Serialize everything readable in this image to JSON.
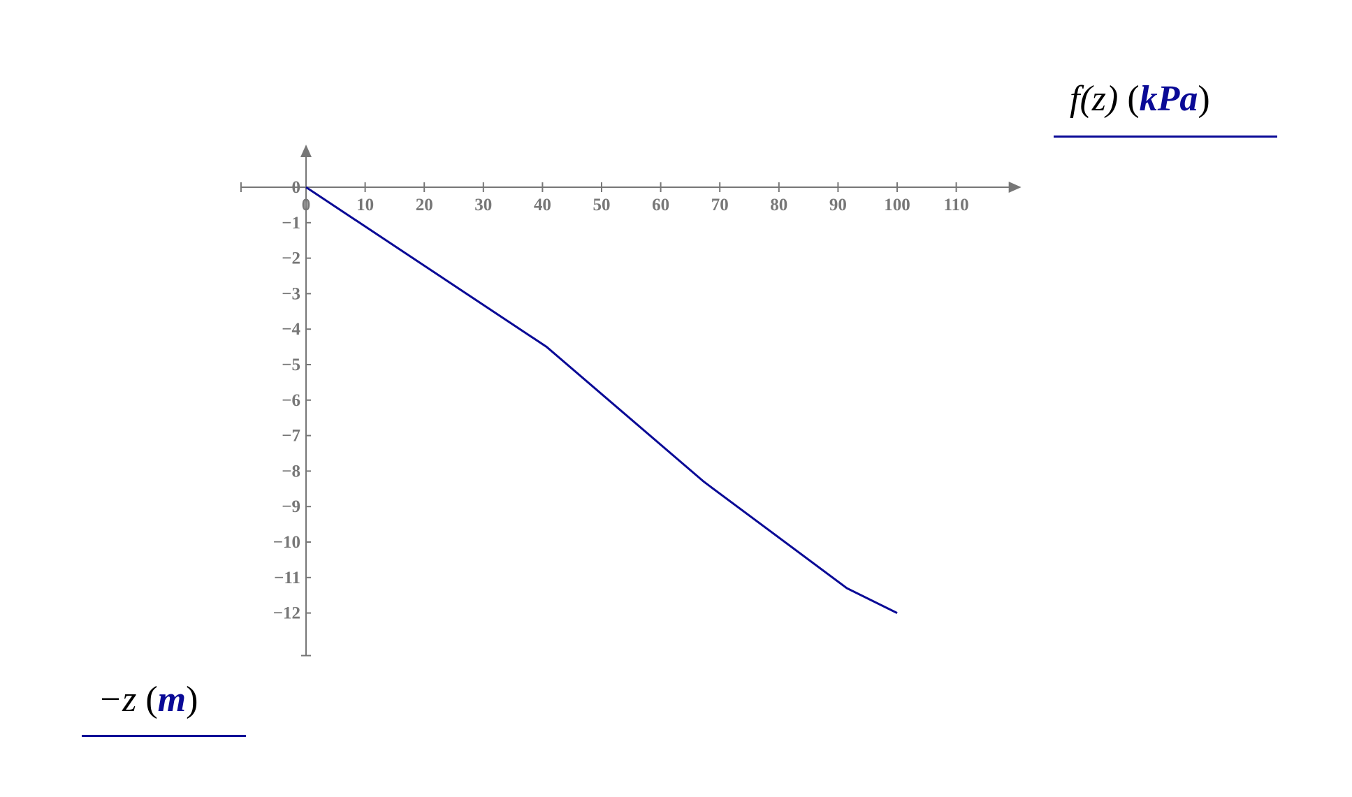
{
  "chart_data": {
    "type": "line",
    "title": "",
    "xlabel": {
      "expr": "f(z)",
      "unit": "kPa"
    },
    "ylabel": {
      "expr": "−z",
      "unit": "m"
    },
    "xlim": [
      -11,
      121
    ],
    "ylim": [
      -13.2,
      1.2
    ],
    "x_ticks": [
      0,
      10,
      20,
      30,
      40,
      50,
      60,
      70,
      80,
      90,
      100,
      110
    ],
    "y_ticks": [
      0,
      -1,
      -2,
      -3,
      -4,
      -5,
      -6,
      -7,
      -8,
      -9,
      -10,
      -11,
      -12
    ],
    "grid": false,
    "series": [
      {
        "x": [
          0,
          40.7,
          67.3,
          91.5,
          100
        ],
        "y": [
          0,
          -4.5,
          -8.3,
          -11.3,
          -12
        ],
        "color": "#0a0a96"
      }
    ],
    "axis_color": "#777777"
  }
}
